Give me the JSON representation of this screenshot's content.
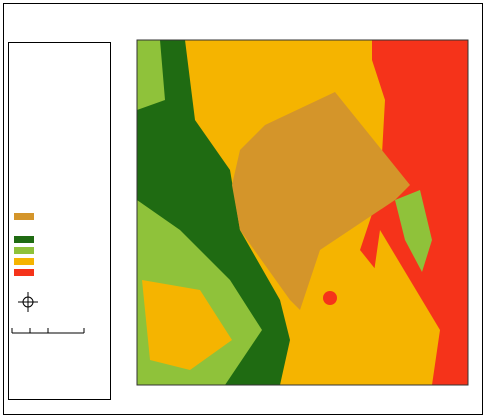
{
  "legend": {
    "items": [
      {
        "color": "#d4952a"
      },
      {
        "color": "#1f6b12"
      },
      {
        "color": "#8fc23a"
      },
      {
        "color": "#f5b400"
      },
      {
        "color": "#f5331a"
      }
    ]
  }
}
